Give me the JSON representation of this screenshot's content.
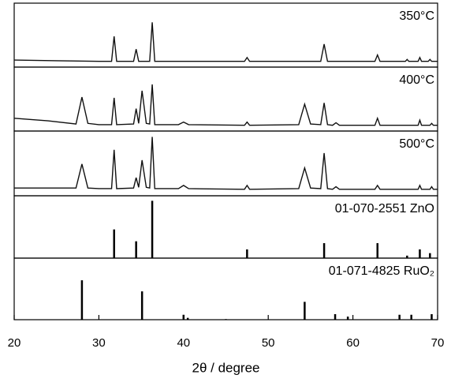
{
  "chart_data": [
    {
      "type": "line",
      "label": "350°C",
      "xlim": [
        20,
        70
      ],
      "ylim": [
        0,
        100
      ],
      "x": [
        20,
        25,
        30,
        31.5,
        31.8,
        32.1,
        34.1,
        34.4,
        34.7,
        36.0,
        36.3,
        36.6,
        40,
        47.2,
        47.5,
        47.8,
        56.2,
        56.6,
        57.0,
        62.6,
        62.9,
        63.2,
        66.2,
        66.4,
        66.6,
        67.7,
        67.9,
        68.1,
        68.9,
        69.1,
        69.3,
        70
      ],
      "values": [
        11,
        10,
        9,
        9,
        48,
        9,
        9,
        28,
        9,
        9,
        70,
        9,
        9,
        9,
        15,
        9,
        9,
        36,
        9,
        9,
        19,
        9,
        9,
        12,
        9,
        9,
        15,
        9,
        9,
        12,
        9,
        9
      ]
    },
    {
      "type": "line",
      "label": "400°C",
      "xlim": [
        20,
        70
      ],
      "ylim": [
        0,
        100
      ],
      "x": [
        20,
        24,
        27.3,
        28.0,
        28.7,
        30,
        31.5,
        31.8,
        32.1,
        34.1,
        34.4,
        34.7,
        35.1,
        35.6,
        36.0,
        36.3,
        36.6,
        39.4,
        40.0,
        40.6,
        47.2,
        47.5,
        47.8,
        53.6,
        54.3,
        55.0,
        56.2,
        56.6,
        57.0,
        57.6,
        58.0,
        58.4,
        62.6,
        62.9,
        63.2,
        67.7,
        67.9,
        68.1,
        69.1,
        69.3,
        69.5,
        70
      ],
      "values": [
        20,
        16,
        11,
        53,
        12,
        10,
        10,
        52,
        10,
        11,
        35,
        12,
        63,
        12,
        11,
        73,
        10,
        10,
        14,
        10,
        9,
        14,
        9,
        10,
        42,
        11,
        10,
        44,
        10,
        9,
        13,
        9,
        9,
        20,
        9,
        9,
        17,
        9,
        9,
        12,
        9,
        9
      ]
    },
    {
      "type": "line",
      "label": "500°C",
      "xlim": [
        20,
        70
      ],
      "ylim": [
        0,
        100
      ],
      "x": [
        20,
        24,
        27.3,
        28.0,
        28.7,
        30,
        31.5,
        31.8,
        32.1,
        34.1,
        34.4,
        34.7,
        35.1,
        35.6,
        36.0,
        36.3,
        36.6,
        39.4,
        40.0,
        40.6,
        47.2,
        47.5,
        47.8,
        53.6,
        54.3,
        55.0,
        56.2,
        56.6,
        57.0,
        57.6,
        58.0,
        58.4,
        62.6,
        62.9,
        63.2,
        67.7,
        67.9,
        68.1,
        69.1,
        69.3,
        69.5,
        70
      ],
      "values": [
        12,
        12,
        12,
        49,
        12,
        11,
        11,
        71,
        11,
        12,
        28,
        13,
        55,
        13,
        12,
        91,
        11,
        11,
        16,
        11,
        10,
        16,
        10,
        11,
        43,
        12,
        11,
        66,
        11,
        10,
        14,
        10,
        10,
        16,
        10,
        10,
        16,
        10,
        10,
        14,
        10,
        10
      ]
    },
    {
      "type": "stem",
      "label": "01-070-2551 ZnO",
      "xlim": [
        20,
        70
      ],
      "ylim": [
        0,
        100
      ],
      "x": [
        31.8,
        34.4,
        36.3,
        47.5,
        56.6,
        62.9,
        66.4,
        67.9,
        69.1
      ],
      "values": [
        46,
        27,
        92,
        14,
        24,
        24,
        4,
        14,
        8
      ]
    },
    {
      "type": "stem",
      "label": "01-071-4825 RuO₂",
      "xlim": [
        20,
        70
      ],
      "ylim": [
        0,
        100
      ],
      "x": [
        28.0,
        35.1,
        40.0,
        40.5,
        45.0,
        54.3,
        57.9,
        59.4,
        65.5,
        66.9,
        69.3
      ],
      "values": [
        64,
        46,
        8,
        3,
        1,
        29,
        9,
        5,
        8,
        8,
        9
      ],
      "xticks": [
        20,
        30,
        40,
        50,
        60,
        70
      ],
      "xlabel": "2θ  / degree"
    }
  ]
}
